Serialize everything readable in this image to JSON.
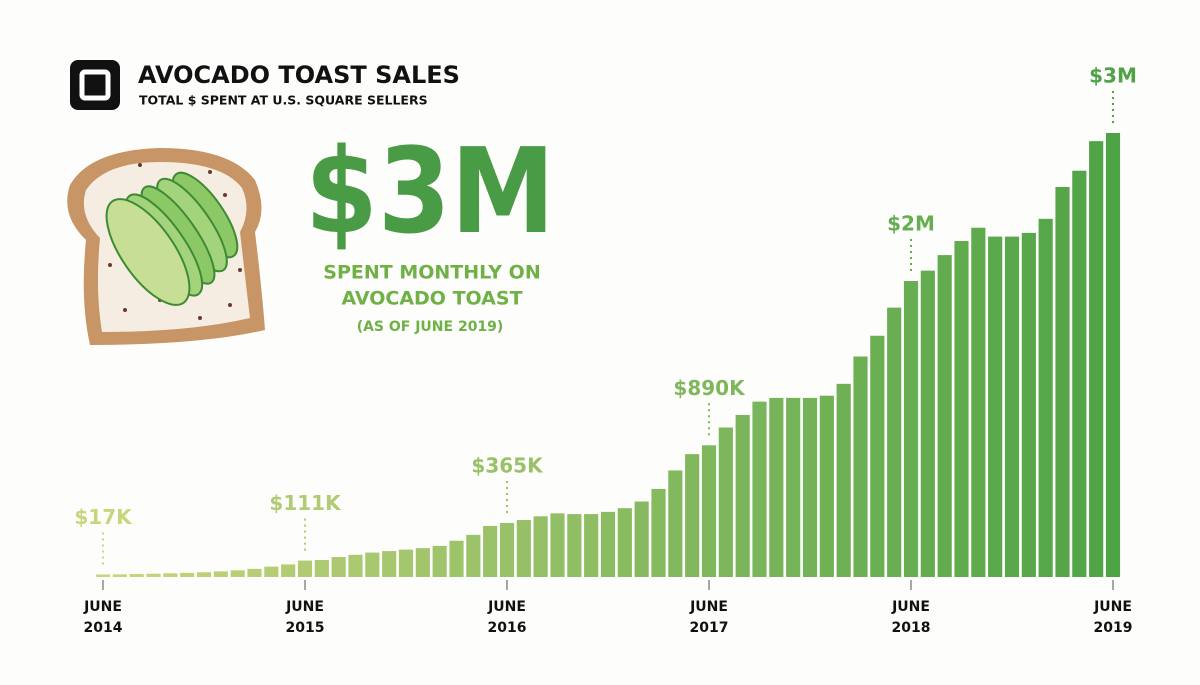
{
  "title": "AVOCADO TOAST SALES",
  "subtitle": "TOTAL $ SPENT AT U.S. SQUARE SELLERS",
  "callout": {
    "value_text": "$3M",
    "text": [
      "SPENT MONTHLY ON",
      "AVOCADO TOAST"
    ],
    "note": "(AS OF JUNE 2019)"
  },
  "chart_data": {
    "type": "bar",
    "categories": [
      "JUNE 2014",
      null,
      null,
      null,
      null,
      null,
      null,
      null,
      null,
      null,
      null,
      null,
      "JUNE 2015",
      null,
      null,
      null,
      null,
      null,
      null,
      null,
      null,
      null,
      null,
      null,
      "JUNE 2016",
      null,
      null,
      null,
      null,
      null,
      null,
      null,
      null,
      null,
      null,
      null,
      "JUNE 2017",
      null,
      null,
      null,
      null,
      null,
      null,
      null,
      null,
      null,
      null,
      null,
      "JUNE 2018",
      null,
      null,
      null,
      null,
      null,
      null,
      null,
      null,
      null,
      null,
      null,
      "JUNE 2019"
    ],
    "values": [
      17000,
      18000,
      20000,
      22000,
      25000,
      28000,
      32000,
      38000,
      45000,
      55000,
      70000,
      85000,
      111000,
      115000,
      135000,
      150000,
      165000,
      175000,
      185000,
      195000,
      210000,
      245000,
      285000,
      345000,
      365000,
      385000,
      410000,
      430000,
      425000,
      425000,
      440000,
      465000,
      510000,
      595000,
      720000,
      830000,
      890000,
      1010000,
      1095000,
      1185000,
      1210000,
      1210000,
      1210000,
      1225000,
      1305000,
      1490000,
      1630000,
      1820000,
      2000000,
      2070000,
      2175000,
      2270000,
      2360000,
      2300000,
      2300000,
      2325000,
      2420000,
      2635000,
      2745000,
      2945000,
      3000000
    ],
    "value_labels": [
      "$17K",
      null,
      null,
      null,
      null,
      null,
      null,
      null,
      null,
      null,
      null,
      null,
      "$111K",
      null,
      null,
      null,
      null,
      null,
      null,
      null,
      null,
      null,
      null,
      null,
      "$365K",
      null,
      null,
      null,
      null,
      null,
      null,
      null,
      null,
      null,
      null,
      null,
      "$890K",
      null,
      null,
      null,
      null,
      null,
      null,
      null,
      null,
      null,
      null,
      null,
      "$2M",
      null,
      null,
      null,
      null,
      null,
      null,
      null,
      null,
      null,
      null,
      null,
      "$3M"
    ],
    "color_start": "#c9d57e",
    "color_end": "#4ea346"
  }
}
